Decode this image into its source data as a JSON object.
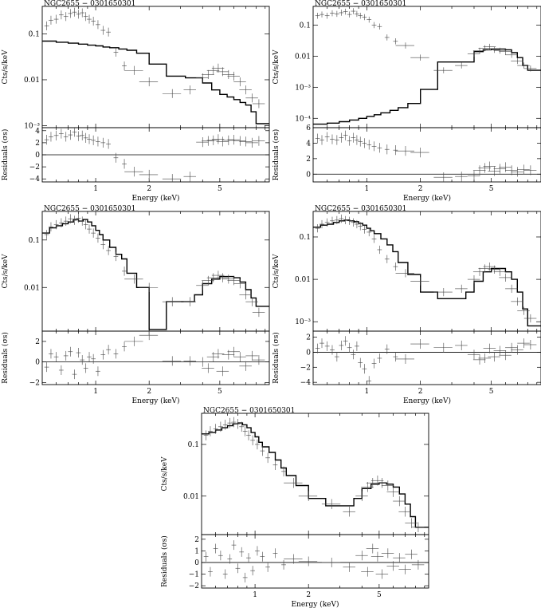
{
  "figure": {
    "panels": [
      {
        "id": "p1",
        "title": "NGC2655 − 0301650301"
      },
      {
        "id": "p2",
        "title": "NGC2655 − 0301650301"
      },
      {
        "id": "p3",
        "title": "NGC2655 − 0301650301"
      },
      {
        "id": "p4",
        "title": "NGC2655 − 0301650301"
      },
      {
        "id": "p5",
        "title": "NGC2655 − 0301650301"
      }
    ]
  },
  "chart_data": [
    {
      "type": "line",
      "title": "NGC2655 − 0301650301",
      "xlabel": "Energy (keV)",
      "ylabel": "Cts/s/keV",
      "rlabel": "Residuals (σs)",
      "xscale": "log",
      "yscale": "log",
      "xlim": [
        0.5,
        9.5
      ],
      "ylim": [
        0.0009,
        0.4
      ],
      "rlim": [
        -4.5,
        4.5
      ],
      "xticks": [
        1,
        2,
        5
      ],
      "yticks": [
        0.001,
        0.01,
        0.1
      ],
      "ytick_labels": [
        "10⁻³",
        "0.01",
        "0.1"
      ],
      "rticks": [
        -4,
        -2,
        0,
        2,
        4
      ],
      "model": {
        "edges": [
          0.5,
          0.6,
          0.7,
          0.8,
          0.9,
          1.0,
          1.1,
          1.2,
          1.35,
          1.5,
          1.7,
          2.0,
          2.5,
          3.2,
          4.0,
          4.5,
          5.0,
          5.5,
          6.0,
          6.5,
          7.0,
          7.5,
          8.0,
          9.5
        ],
        "values": [
          0.07,
          0.066,
          0.063,
          0.06,
          0.057,
          0.055,
          0.052,
          0.05,
          0.047,
          0.044,
          0.038,
          0.022,
          0.012,
          0.011,
          0.0085,
          0.006,
          0.0048,
          0.0042,
          0.0037,
          0.0032,
          0.0028,
          0.002,
          0.0011
        ]
      },
      "data": {
        "x": [
          0.53,
          0.56,
          0.6,
          0.64,
          0.68,
          0.72,
          0.76,
          0.8,
          0.84,
          0.88,
          0.92,
          0.97,
          1.03,
          1.1,
          1.18,
          1.3,
          1.45,
          1.65,
          2.0,
          2.7,
          3.4,
          4.0,
          4.3,
          4.6,
          4.9,
          5.2,
          5.6,
          6.0,
          6.5,
          7.0,
          7.6,
          8.3
        ],
        "y": [
          0.15,
          0.2,
          0.21,
          0.26,
          0.24,
          0.28,
          0.3,
          0.27,
          0.29,
          0.24,
          0.21,
          0.19,
          0.16,
          0.12,
          0.11,
          0.04,
          0.02,
          0.016,
          0.009,
          0.005,
          0.006,
          0.011,
          0.013,
          0.016,
          0.018,
          0.015,
          0.013,
          0.012,
          0.009,
          0.006,
          0.004,
          0.003
        ],
        "r": [
          2.5,
          3.0,
          3.2,
          3.5,
          3.0,
          3.3,
          3.8,
          3.1,
          3.2,
          2.8,
          2.6,
          2.4,
          2.2,
          2.0,
          1.8,
          -0.5,
          -1.5,
          -2.8,
          -3.3,
          -4.0,
          -3.6,
          2.1,
          2.3,
          2.4,
          2.6,
          2.2,
          2.4,
          2.5,
          2.3,
          2.2,
          2.0,
          2.3
        ]
      }
    },
    {
      "type": "line",
      "title": "NGC2655 − 0301650301",
      "xlabel": "Energy (keV)",
      "ylabel": "Cts/s/keV",
      "rlabel": "Residuals (σs)",
      "xscale": "log",
      "yscale": "log",
      "xlim": [
        0.5,
        9.5
      ],
      "ylim": [
        5e-05,
        0.4
      ],
      "rlim": [
        -1,
        6
      ],
      "xticks": [
        1,
        2,
        5
      ],
      "yticks": [
        0.0001,
        0.001,
        0.01,
        0.1
      ],
      "ytick_labels": [
        "10⁻⁴",
        "10⁻³",
        "0.01",
        "0.1"
      ],
      "rticks": [
        0,
        2,
        4,
        6
      ],
      "model": {
        "edges": [
          0.5,
          0.6,
          0.7,
          0.8,
          0.9,
          1.0,
          1.1,
          1.2,
          1.35,
          1.5,
          1.7,
          2.0,
          2.5,
          3.2,
          4.0,
          4.5,
          5.0,
          5.5,
          6.0,
          6.5,
          7.0,
          7.5,
          8.0,
          9.5
        ],
        "values": [
          6.5e-05,
          7e-05,
          7.8e-05,
          8.8e-05,
          0.0001,
          0.000115,
          0.00013,
          0.00015,
          0.00018,
          0.00022,
          0.0003,
          0.00085,
          0.0065,
          0.0065,
          0.014,
          0.016,
          0.017,
          0.017,
          0.016,
          0.013,
          0.009,
          0.005,
          0.0035
        ]
      },
      "data": {
        "x": [
          0.53,
          0.56,
          0.6,
          0.64,
          0.68,
          0.72,
          0.76,
          0.8,
          0.84,
          0.88,
          0.92,
          0.97,
          1.03,
          1.1,
          1.18,
          1.3,
          1.45,
          1.65,
          2.0,
          2.7,
          3.4,
          4.0,
          4.3,
          4.6,
          4.9,
          5.2,
          5.6,
          6.0,
          6.5,
          7.0,
          7.6,
          8.3
        ],
        "y": [
          0.2,
          0.22,
          0.2,
          0.24,
          0.23,
          0.25,
          0.27,
          0.22,
          0.28,
          0.23,
          0.2,
          0.18,
          0.15,
          0.1,
          0.09,
          0.04,
          0.03,
          0.022,
          0.009,
          0.0035,
          0.005,
          0.012,
          0.015,
          0.018,
          0.02,
          0.016,
          0.015,
          0.014,
          0.011,
          0.007,
          0.005,
          0.004
        ],
        "r": [
          4.6,
          4.4,
          4.8,
          4.5,
          4.4,
          4.7,
          5.0,
          4.3,
          4.7,
          4.4,
          4.2,
          4.0,
          3.8,
          3.6,
          3.4,
          3.2,
          3.1,
          3.0,
          2.8,
          -0.4,
          -0.3,
          -0.2,
          0.5,
          0.8,
          1.0,
          0.4,
          0.7,
          0.9,
          0.5,
          0.3,
          0.6,
          0.5
        ]
      }
    },
    {
      "type": "line",
      "title": "NGC2655 − 0301650301",
      "xlabel": "Energy (keV)",
      "ylabel": "Cts/s/keV",
      "rlabel": "Residuals (σs)",
      "xscale": "log",
      "yscale": "log",
      "xlim": [
        0.5,
        9.5
      ],
      "ylim": [
        0.0012,
        0.4
      ],
      "rlim": [
        -2.2,
        3
      ],
      "xticks": [
        1,
        2,
        5
      ],
      "yticks": [
        0.01,
        0.1
      ],
      "ytick_labels": [
        "0.01",
        "0.1"
      ],
      "rticks": [
        -2,
        0,
        2
      ],
      "model": {
        "edges": [
          0.5,
          0.55,
          0.6,
          0.65,
          0.7,
          0.75,
          0.8,
          0.85,
          0.9,
          0.95,
          1.0,
          1.05,
          1.1,
          1.2,
          1.3,
          1.4,
          1.5,
          1.7,
          2.0,
          2.5,
          3.2,
          3.6,
          4.0,
          4.5,
          5.0,
          5.5,
          6.0,
          6.5,
          7.0,
          7.5,
          8.0,
          9.5
        ],
        "values": [
          0.14,
          0.18,
          0.2,
          0.22,
          0.24,
          0.27,
          0.25,
          0.27,
          0.24,
          0.2,
          0.16,
          0.13,
          0.1,
          0.07,
          0.05,
          0.04,
          0.02,
          0.01,
          0.0013,
          0.005,
          0.005,
          0.007,
          0.012,
          0.015,
          0.017,
          0.017,
          0.016,
          0.013,
          0.009,
          0.006,
          0.004
        ]
      },
      "data": {
        "x": [
          0.53,
          0.56,
          0.6,
          0.64,
          0.68,
          0.72,
          0.76,
          0.8,
          0.84,
          0.88,
          0.92,
          0.97,
          1.03,
          1.1,
          1.18,
          1.3,
          1.45,
          1.65,
          2.0,
          2.7,
          3.4,
          4.0,
          4.3,
          4.6,
          4.9,
          5.2,
          5.6,
          6.0,
          6.5,
          7.0,
          7.6,
          8.3
        ],
        "y": [
          0.13,
          0.19,
          0.21,
          0.23,
          0.25,
          0.28,
          0.26,
          0.29,
          0.25,
          0.21,
          0.17,
          0.14,
          0.11,
          0.08,
          0.06,
          0.045,
          0.022,
          0.015,
          0.01,
          0.005,
          0.005,
          0.011,
          0.014,
          0.016,
          0.018,
          0.016,
          0.015,
          0.014,
          0.012,
          0.007,
          0.005,
          0.003
        ],
        "r": [
          -0.5,
          0.8,
          0.5,
          -0.8,
          0.6,
          1.0,
          -1.2,
          0.9,
          0.2,
          -0.6,
          0.5,
          0.3,
          -0.9,
          0.7,
          1.2,
          0.8,
          1.5,
          2.0,
          2.6,
          0.1,
          0.1,
          0.0,
          -0.6,
          0.5,
          0.8,
          -0.9,
          0.7,
          1.0,
          0.5,
          -0.4,
          0.6,
          0.2
        ]
      }
    },
    {
      "type": "line",
      "title": "NGC2655 − 0301650301",
      "xlabel": "Energy (keV)",
      "ylabel": "Cts/s/keV",
      "rlabel": "Residuals (σs)",
      "xscale": "log",
      "yscale": "log",
      "xlim": [
        0.5,
        9.5
      ],
      "ylim": [
        0.0006,
        0.4
      ],
      "rlim": [
        -4.3,
        2.8
      ],
      "xticks": [
        1,
        2,
        5
      ],
      "yticks": [
        0.001,
        0.01,
        0.1
      ],
      "ytick_labels": [
        "10⁻³",
        "0.01",
        "0.1"
      ],
      "rticks": [
        -4,
        -2,
        0,
        2
      ],
      "model": {
        "edges": [
          0.5,
          0.55,
          0.6,
          0.65,
          0.7,
          0.75,
          0.8,
          0.85,
          0.9,
          0.95,
          1.0,
          1.05,
          1.1,
          1.2,
          1.3,
          1.4,
          1.5,
          1.7,
          2.0,
          2.5,
          3.2,
          3.6,
          4.0,
          4.5,
          5.0,
          5.5,
          6.0,
          6.5,
          7.0,
          7.5,
          8.0,
          9.5
        ],
        "values": [
          0.17,
          0.19,
          0.2,
          0.22,
          0.24,
          0.25,
          0.24,
          0.23,
          0.21,
          0.19,
          0.16,
          0.14,
          0.12,
          0.09,
          0.065,
          0.045,
          0.025,
          0.013,
          0.005,
          0.0035,
          0.0035,
          0.005,
          0.009,
          0.015,
          0.018,
          0.018,
          0.015,
          0.01,
          0.005,
          0.002,
          0.0008
        ]
      },
      "data": {
        "x": [
          0.53,
          0.56,
          0.6,
          0.64,
          0.68,
          0.72,
          0.76,
          0.8,
          0.84,
          0.88,
          0.92,
          0.97,
          1.03,
          1.1,
          1.18,
          1.3,
          1.45,
          1.65,
          2.0,
          2.7,
          3.4,
          4.0,
          4.3,
          4.6,
          4.9,
          5.2,
          5.6,
          6.0,
          6.5,
          7.0,
          7.6,
          8.3
        ],
        "y": [
          0.16,
          0.2,
          0.22,
          0.24,
          0.25,
          0.27,
          0.25,
          0.24,
          0.22,
          0.2,
          0.18,
          0.15,
          0.13,
          0.09,
          0.05,
          0.03,
          0.02,
          0.014,
          0.009,
          0.005,
          0.006,
          0.01,
          0.015,
          0.018,
          0.02,
          0.017,
          0.015,
          0.011,
          0.006,
          0.003,
          0.0018,
          0.0012
        ],
        "r": [
          0.5,
          1.2,
          0.8,
          0.3,
          -0.6,
          0.9,
          1.5,
          0.6,
          -0.3,
          0.8,
          -1.4,
          -2.2,
          -3.8,
          -1.5,
          -0.8,
          0.4,
          -0.6,
          -0.9,
          1.1,
          0.6,
          0.9,
          -0.3,
          -1.0,
          -0.8,
          0.5,
          -0.6,
          0.2,
          -0.4,
          0.6,
          0.3,
          1.2,
          1.0
        ]
      }
    },
    {
      "type": "line",
      "title": "NGC2655 − 0301650301",
      "xlabel": "Energy (keV)",
      "ylabel": "Cts/s/keV",
      "rlabel": "Residuals (σs)",
      "xscale": "log",
      "yscale": "log",
      "xlim": [
        0.5,
        9.5
      ],
      "ylim": [
        0.0018,
        0.4
      ],
      "rlim": [
        -2.2,
        2.4
      ],
      "xticks": [
        1,
        2,
        5
      ],
      "yticks": [
        0.01,
        0.1
      ],
      "ytick_labels": [
        "0.01",
        "0.1"
      ],
      "rticks": [
        -2,
        -1,
        0,
        1,
        2
      ],
      "model": {
        "edges": [
          0.5,
          0.55,
          0.6,
          0.65,
          0.7,
          0.75,
          0.8,
          0.85,
          0.9,
          0.95,
          1.0,
          1.05,
          1.1,
          1.2,
          1.3,
          1.4,
          1.5,
          1.7,
          2.0,
          2.5,
          3.2,
          3.6,
          4.0,
          4.5,
          5.0,
          5.5,
          6.0,
          6.5,
          7.0,
          7.5,
          8.0,
          9.5
        ],
        "values": [
          0.16,
          0.17,
          0.19,
          0.21,
          0.23,
          0.25,
          0.26,
          0.24,
          0.21,
          0.17,
          0.14,
          0.11,
          0.09,
          0.07,
          0.05,
          0.035,
          0.025,
          0.016,
          0.009,
          0.0065,
          0.0065,
          0.009,
          0.014,
          0.017,
          0.018,
          0.017,
          0.015,
          0.011,
          0.007,
          0.004,
          0.0025
        ]
      },
      "data": {
        "x": [
          0.53,
          0.56,
          0.6,
          0.64,
          0.68,
          0.72,
          0.76,
          0.8,
          0.84,
          0.88,
          0.92,
          0.97,
          1.03,
          1.1,
          1.18,
          1.3,
          1.45,
          1.65,
          2.0,
          2.7,
          3.4,
          4.0,
          4.3,
          4.6,
          4.9,
          5.2,
          5.6,
          6.0,
          6.5,
          7.0,
          7.6,
          8.3
        ],
        "y": [
          0.15,
          0.18,
          0.2,
          0.22,
          0.24,
          0.26,
          0.27,
          0.25,
          0.22,
          0.18,
          0.15,
          0.12,
          0.1,
          0.075,
          0.055,
          0.04,
          0.03,
          0.018,
          0.01,
          0.007,
          0.005,
          0.01,
          0.015,
          0.018,
          0.02,
          0.018,
          0.016,
          0.012,
          0.008,
          0.005,
          0.003,
          0.0025
        ],
        "r": [
          0.5,
          -0.8,
          1.2,
          0.6,
          -1.0,
          0.3,
          1.5,
          -0.5,
          0.9,
          -1.3,
          0.4,
          -0.7,
          1.0,
          0.5,
          -0.4,
          0.8,
          -0.2,
          0.3,
          0.1,
          0.0,
          -0.4,
          0.6,
          -0.8,
          1.2,
          0.5,
          -1.0,
          0.8,
          -0.3,
          0.4,
          -0.6,
          0.7,
          -0.2
        ]
      }
    }
  ]
}
